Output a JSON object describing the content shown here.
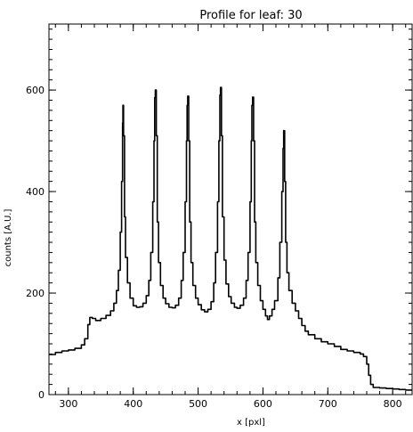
{
  "chart_data": {
    "type": "line",
    "title": "Profile for leaf: 30",
    "xlabel": "x [pxl]",
    "ylabel": "counts [A.U.]",
    "xlim": [
      270,
      830
    ],
    "ylim": [
      0,
      730
    ],
    "x_ticks": [
      300,
      400,
      500,
      600,
      700,
      800
    ],
    "y_ticks": [
      0,
      200,
      400,
      600
    ],
    "grid": false,
    "legend": "none",
    "line_color": "#000000",
    "series": [
      {
        "points": [
          [
            270,
            79
          ],
          [
            280,
            83
          ],
          [
            290,
            86
          ],
          [
            300,
            88
          ],
          [
            310,
            91
          ],
          [
            320,
            98
          ],
          [
            325,
            110
          ],
          [
            330,
            138
          ],
          [
            333,
            152
          ],
          [
            337,
            150
          ],
          [
            342,
            146
          ],
          [
            350,
            150
          ],
          [
            358,
            156
          ],
          [
            365,
            165
          ],
          [
            370,
            180
          ],
          [
            374,
            205
          ],
          [
            377,
            245
          ],
          [
            380,
            320
          ],
          [
            382,
            420
          ],
          [
            383.5,
            535
          ],
          [
            384,
            570
          ],
          [
            385,
            510
          ],
          [
            386.5,
            350
          ],
          [
            388,
            270
          ],
          [
            391,
            220
          ],
          [
            395,
            190
          ],
          [
            400,
            175
          ],
          [
            405,
            172
          ],
          [
            410,
            173
          ],
          [
            415,
            180
          ],
          [
            420,
            195
          ],
          [
            424,
            225
          ],
          [
            427,
            280
          ],
          [
            430,
            380
          ],
          [
            432,
            500
          ],
          [
            433,
            585
          ],
          [
            434,
            600
          ],
          [
            435.5,
            510
          ],
          [
            437,
            340
          ],
          [
            439,
            260
          ],
          [
            442,
            215
          ],
          [
            446,
            190
          ],
          [
            450,
            179
          ],
          [
            455,
            172
          ],
          [
            460,
            171
          ],
          [
            465,
            176
          ],
          [
            470,
            190
          ],
          [
            474,
            225
          ],
          [
            477,
            280
          ],
          [
            480,
            380
          ],
          [
            482,
            500
          ],
          [
            483,
            570
          ],
          [
            484,
            588
          ],
          [
            485.5,
            500
          ],
          [
            487,
            340
          ],
          [
            489,
            260
          ],
          [
            492,
            215
          ],
          [
            496,
            190
          ],
          [
            500,
            177
          ],
          [
            505,
            167
          ],
          [
            510,
            163
          ],
          [
            515,
            168
          ],
          [
            520,
            183
          ],
          [
            524,
            220
          ],
          [
            527,
            280
          ],
          [
            530,
            380
          ],
          [
            532,
            500
          ],
          [
            533.5,
            590
          ],
          [
            534.5,
            605
          ],
          [
            536,
            510
          ],
          [
            537.5,
            350
          ],
          [
            540,
            265
          ],
          [
            543,
            218
          ],
          [
            547,
            193
          ],
          [
            551,
            180
          ],
          [
            556,
            172
          ],
          [
            560,
            170
          ],
          [
            565,
            176
          ],
          [
            570,
            190
          ],
          [
            574,
            225
          ],
          [
            577,
            280
          ],
          [
            580,
            380
          ],
          [
            582,
            500
          ],
          [
            583,
            570
          ],
          [
            584,
            586
          ],
          [
            585.5,
            500
          ],
          [
            587,
            340
          ],
          [
            589,
            260
          ],
          [
            592,
            215
          ],
          [
            596,
            185
          ],
          [
            600,
            168
          ],
          [
            604,
            155
          ],
          [
            607,
            148
          ],
          [
            610,
            155
          ],
          [
            614,
            168
          ],
          [
            618,
            185
          ],
          [
            623,
            230
          ],
          [
            626,
            300
          ],
          [
            629,
            400
          ],
          [
            631,
            485
          ],
          [
            632,
            520
          ],
          [
            633.5,
            420
          ],
          [
            635,
            300
          ],
          [
            637,
            240
          ],
          [
            640,
            205
          ],
          [
            645,
            180
          ],
          [
            650,
            165
          ],
          [
            655,
            150
          ],
          [
            660,
            136
          ],
          [
            665,
            125
          ],
          [
            670,
            118
          ],
          [
            680,
            110
          ],
          [
            690,
            104
          ],
          [
            700,
            100
          ],
          [
            710,
            95
          ],
          [
            720,
            89
          ],
          [
            730,
            86
          ],
          [
            740,
            83
          ],
          [
            750,
            80
          ],
          [
            755,
            75
          ],
          [
            760,
            60
          ],
          [
            763,
            38
          ],
          [
            766,
            20
          ],
          [
            770,
            14
          ],
          [
            780,
            13
          ],
          [
            790,
            12
          ],
          [
            800,
            11
          ],
          [
            810,
            10
          ],
          [
            820,
            9
          ],
          [
            830,
            9
          ]
        ]
      }
    ]
  }
}
